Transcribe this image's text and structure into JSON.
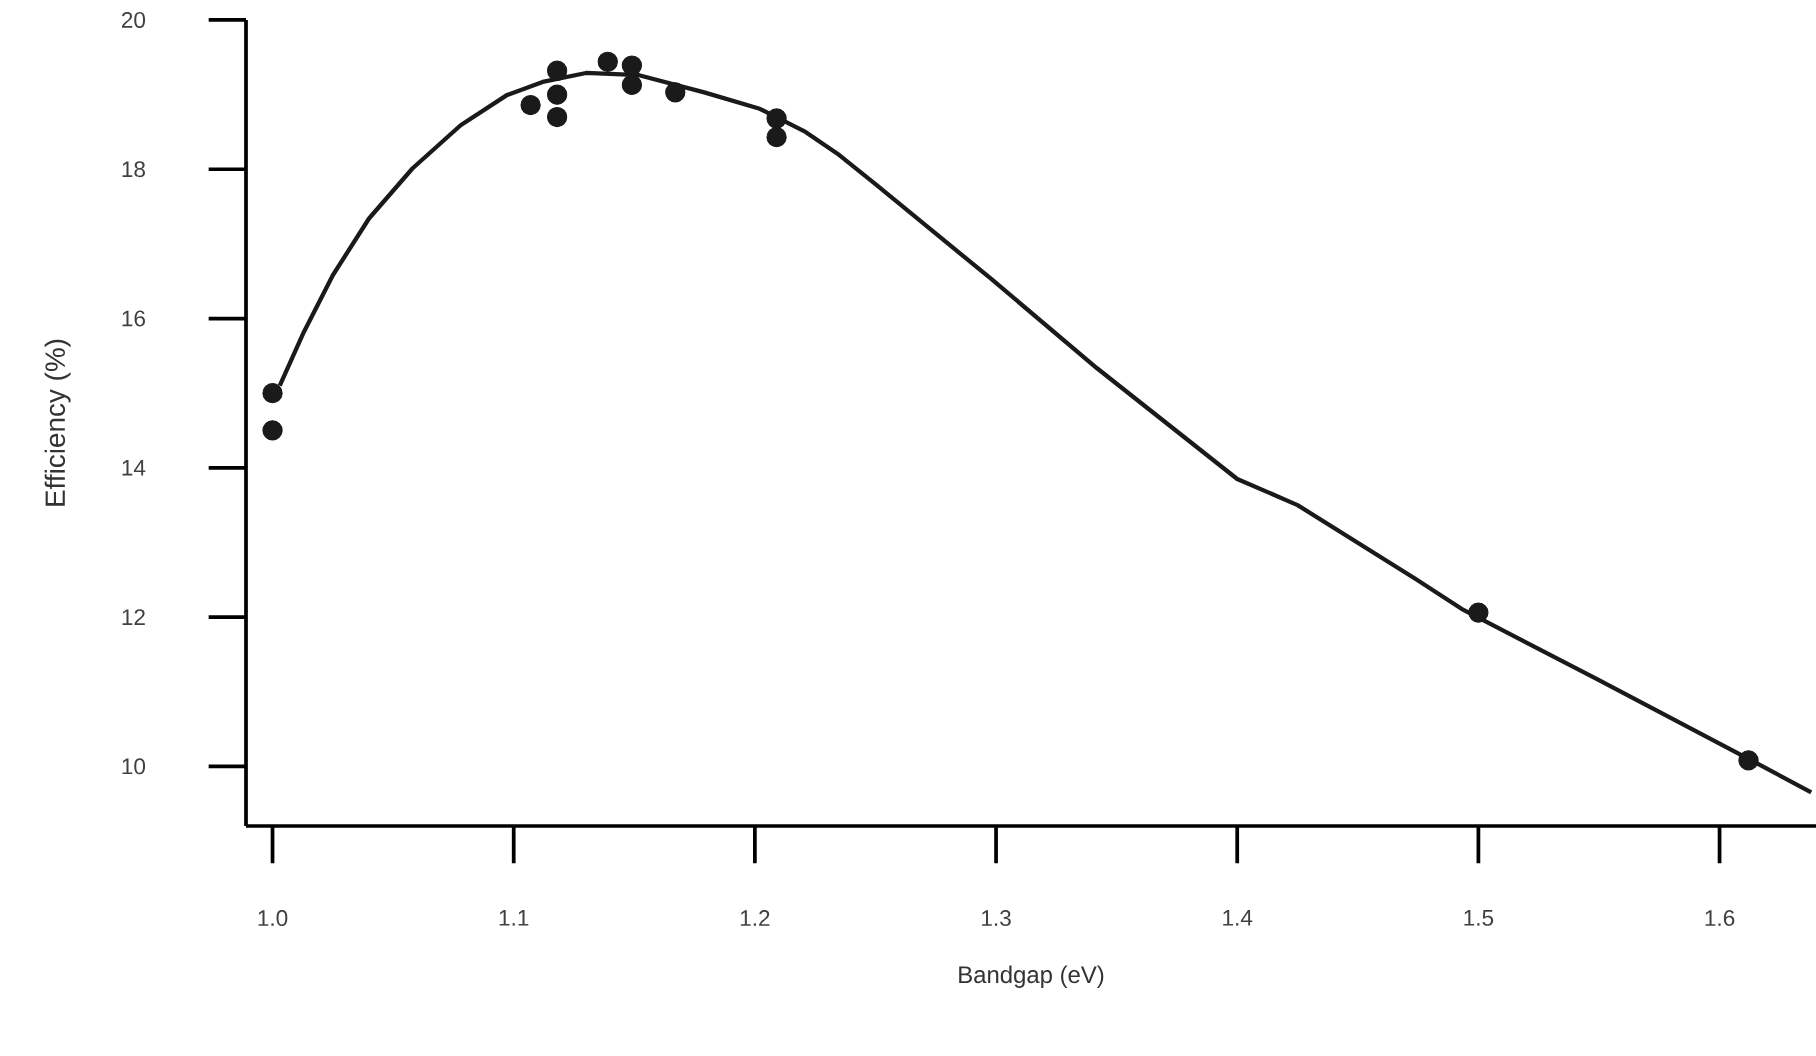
{
  "chart_data": {
    "type": "scatter",
    "xlabel": "Bandgap (eV)",
    "ylabel": "Efficiency (%)",
    "xlim": [
      0.989,
      1.64
    ],
    "ylim": [
      9.2,
      20
    ],
    "xticks": [
      {
        "value": 1.0,
        "label": "1.0"
      },
      1.1,
      1.2,
      1.3,
      1.4,
      1.5,
      1.6
    ],
    "yticks": [
      10,
      12,
      14,
      16,
      18,
      20
    ],
    "series": [
      {
        "type": "line",
        "marker": "none",
        "line_style": "solid",
        "color": "#1a1a1a",
        "x": [
          1.003,
          1.013,
          1.025,
          1.04,
          1.058,
          1.078,
          1.097,
          1.112,
          1.13,
          1.152,
          1.179,
          1.202,
          1.221,
          1.235,
          1.25,
          1.298,
          1.342,
          1.4,
          1.425,
          1.474,
          1.493,
          1.549,
          1.612,
          1.638
        ],
        "values": [
          15.1,
          15.82,
          16.58,
          17.34,
          18.01,
          18.59,
          18.99,
          19.17,
          19.29,
          19.26,
          19.03,
          18.81,
          18.5,
          18.19,
          17.8,
          16.53,
          15.33,
          13.85,
          13.5,
          12.51,
          12.11,
          11.17,
          10.1,
          9.65
        ]
      },
      {
        "marker": "circle",
        "color": "#1a1a1a",
        "x": [
          1.0,
          1.0,
          1.107,
          1.118,
          1.118,
          1.118,
          1.139,
          1.149,
          1.149,
          1.167,
          1.209,
          1.209,
          1.5,
          1.612
        ],
        "values": [
          15.0,
          14.5,
          18.86,
          19.32,
          19.0,
          18.7,
          19.44,
          19.39,
          19.13,
          19.03,
          18.68,
          18.43,
          12.06,
          10.08
        ]
      }
    ]
  }
}
